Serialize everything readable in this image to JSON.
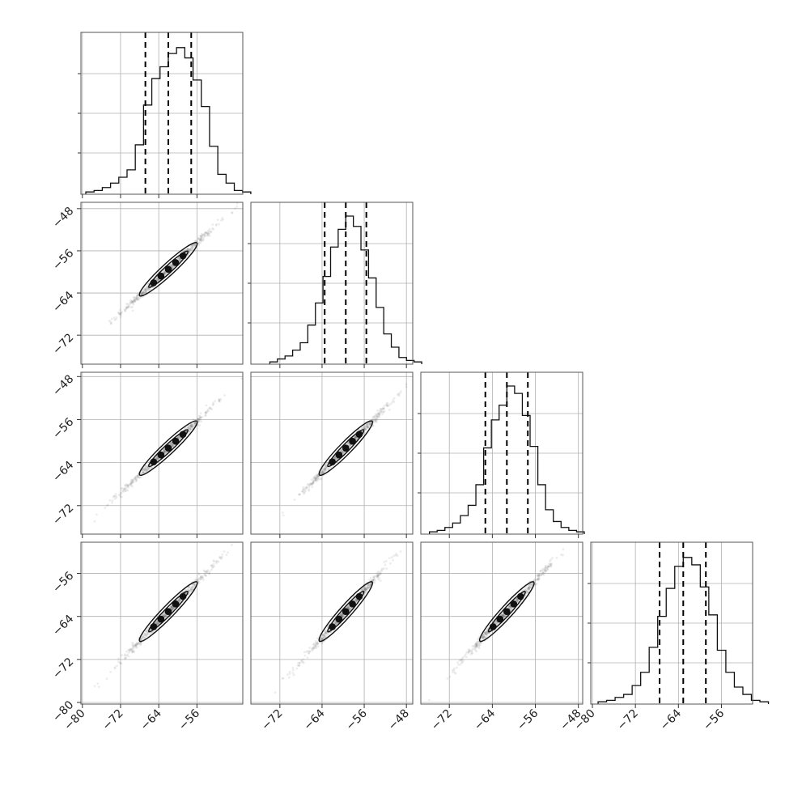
{
  "chart_data": {
    "type": "corner",
    "n_params": 4,
    "grid": true,
    "params": [
      {
        "mean": -62.0,
        "std": 4.8,
        "quantiles": [
          -66.8,
          -62.0,
          -57.2
        ],
        "range": [
          -80.3,
          -46.4
        ],
        "ticks": [
          -80,
          -72,
          -64,
          -56
        ]
      },
      {
        "mean": -59.5,
        "std": 4.0,
        "quantiles": [
          -63.5,
          -59.5,
          -55.6
        ],
        "range": [
          -77.5,
          -46.8
        ],
        "ticks": [
          -72,
          -64,
          -56,
          -48
        ]
      },
      {
        "mean": -61.3,
        "std": 4.0,
        "quantiles": [
          -65.3,
          -61.3,
          -57.4
        ],
        "range": [
          -77.3,
          -47.2
        ],
        "ticks": [
          -72,
          -64,
          -56,
          -48
        ]
      },
      {
        "mean": -63.1,
        "std": 4.4,
        "quantiles": [
          -67.5,
          -63.1,
          -58.9
        ],
        "range": [
          -80.3,
          -50.2
        ],
        "ticks": [
          -80,
          -72,
          -64,
          -56
        ]
      }
    ],
    "y_tick_labels": {
      "row1": [
        "−48",
        "−56",
        "−64",
        "−72"
      ],
      "row2": [
        "−48",
        "−56",
        "−64",
        "−72"
      ],
      "row3": [
        "−56",
        "−64",
        "−72",
        "−80"
      ]
    },
    "x_tick_labels": {
      "col0": [
        "−80",
        "−72",
        "−64",
        "−56"
      ],
      "col1": [
        "−72",
        "−64",
        "−56",
        "−48"
      ],
      "col2": [
        "−72",
        "−64",
        "−56",
        "−48"
      ],
      "col3": [
        "−80",
        "−72",
        "−64",
        "−56"
      ]
    },
    "histograms": [
      [
        0.01,
        0.02,
        0.04,
        0.07,
        0.11,
        0.16,
        0.33,
        0.6,
        0.78,
        0.86,
        0.95,
        0.99,
        0.92,
        0.77,
        0.59,
        0.32,
        0.13,
        0.07,
        0.02,
        0.01
      ],
      [
        0.01,
        0.03,
        0.05,
        0.09,
        0.14,
        0.26,
        0.41,
        0.59,
        0.79,
        0.91,
        1.0,
        0.93,
        0.77,
        0.58,
        0.38,
        0.2,
        0.11,
        0.04,
        0.02,
        0.01
      ],
      [
        0.01,
        0.02,
        0.04,
        0.07,
        0.12,
        0.19,
        0.33,
        0.58,
        0.77,
        0.87,
        1.0,
        0.95,
        0.8,
        0.59,
        0.33,
        0.16,
        0.08,
        0.04,
        0.02,
        0.01
      ],
      [
        0.01,
        0.02,
        0.04,
        0.06,
        0.12,
        0.21,
        0.38,
        0.59,
        0.78,
        0.93,
        0.99,
        0.94,
        0.79,
        0.6,
        0.36,
        0.21,
        0.11,
        0.06,
        0.02,
        0.01
      ]
    ],
    "correlation": 0.995
  }
}
